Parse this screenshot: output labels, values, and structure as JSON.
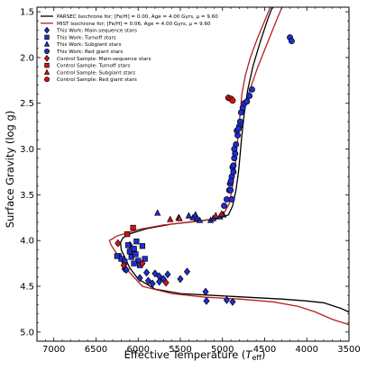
{
  "chart_data": {
    "type": "scatter",
    "xlabel_main": "Effective Temperature (",
    "xlabel_sym": "T",
    "xlabel_sub": "eff",
    "xlabel_close": ")",
    "ylabel": "Surface Gravity (log g)",
    "xlim": [
      7200,
      3500
    ],
    "ylim": [
      5.1,
      1.45
    ],
    "x_ticks": [
      7000,
      6500,
      6000,
      5500,
      5000,
      4500,
      4000,
      3500
    ],
    "x_tick_labels": [
      "7000",
      "6500",
      "6000",
      "5500",
      "5000",
      "4500",
      "4000",
      "3500"
    ],
    "y_ticks": [
      1.5,
      2.0,
      2.5,
      3.0,
      3.5,
      4.0,
      4.5,
      5.0
    ],
    "y_tick_labels": [
      "1.5",
      "2.0",
      "2.5",
      "3.0",
      "3.5",
      "4.0",
      "4.5",
      "5.0"
    ],
    "legend_position": "top-left",
    "legend": [
      {
        "label": "PARSEC Isochrone for; [Fe/H] = 0.00, Age = 4.00 Gyrs, μ = 9.60",
        "kind": "line",
        "color": "#000000"
      },
      {
        "label": "MIST Isochrone for; [Fe/H] = 0.06, Age = 4.00 Gyrs, μ = 9.60",
        "kind": "line",
        "color": "#b22222"
      },
      {
        "label": "This Work: Main-sequence stars",
        "kind": "diamond",
        "color": "#1f2fd6"
      },
      {
        "label": "This Work: Turnoff stars",
        "kind": "square",
        "color": "#1f2fd6"
      },
      {
        "label": "This Work: Subgiant stars",
        "kind": "triangle",
        "color": "#1f2fd6"
      },
      {
        "label": "This Work: Red giant stars",
        "kind": "circle",
        "color": "#1f2fd6"
      },
      {
        "label": "Control Sample: Main-sequence stars",
        "kind": "diamond",
        "color": "#dd1111"
      },
      {
        "label": "Control Sample: Turnoff stars",
        "kind": "square",
        "color": "#dd1111"
      },
      {
        "label": "Control Sample: Subgiant stars",
        "kind": "triangle",
        "color": "#dd1111"
      },
      {
        "label": "Control Sample: Red giant stars",
        "kind": "circle",
        "color": "#dd1111"
      }
    ],
    "series": [
      {
        "name": "PARSEC Isochrone for; [Fe/H] = 0.00, Age = 4.00 Gyrs, μ = 9.60",
        "kind": "line",
        "color": "#000000",
        "points": [
          [
            3500,
            4.78
          ],
          [
            3600,
            4.74
          ],
          [
            3700,
            4.71
          ],
          [
            3800,
            4.68
          ],
          [
            4000,
            4.66
          ],
          [
            4300,
            4.64
          ],
          [
            4700,
            4.62
          ],
          [
            5100,
            4.6
          ],
          [
            5500,
            4.58
          ],
          [
            5800,
            4.53
          ],
          [
            6000,
            4.42
          ],
          [
            6100,
            4.3
          ],
          [
            6150,
            4.2
          ],
          [
            6200,
            4.1
          ],
          [
            6210,
            4.02
          ],
          [
            6180,
            3.97
          ],
          [
            6080,
            3.92
          ],
          [
            5900,
            3.87
          ],
          [
            5600,
            3.82
          ],
          [
            5300,
            3.79
          ],
          [
            5050,
            3.76
          ],
          [
            4930,
            3.72
          ],
          [
            4880,
            3.62
          ],
          [
            4840,
            3.45
          ],
          [
            4810,
            3.25
          ],
          [
            4790,
            3.05
          ],
          [
            4770,
            2.85
          ],
          [
            4740,
            2.6
          ],
          [
            4700,
            2.35
          ],
          [
            4640,
            2.1
          ],
          [
            4560,
            1.85
          ],
          [
            4470,
            1.6
          ],
          [
            4390,
            1.4
          ]
        ]
      },
      {
        "name": "MIST Isochrone for; [Fe/H] = 0.06, Age = 4.00 Gyrs, μ = 9.60",
        "kind": "line",
        "color": "#b22222",
        "points": [
          [
            3500,
            4.92
          ],
          [
            3700,
            4.86
          ],
          [
            3900,
            4.78
          ],
          [
            4100,
            4.72
          ],
          [
            4400,
            4.67
          ],
          [
            4800,
            4.64
          ],
          [
            5200,
            4.62
          ],
          [
            5600,
            4.58
          ],
          [
            5950,
            4.5
          ],
          [
            6150,
            4.3
          ],
          [
            6250,
            4.15
          ],
          [
            6320,
            4.05
          ],
          [
            6340,
            4.0
          ],
          [
            6250,
            3.95
          ],
          [
            6000,
            3.88
          ],
          [
            5700,
            3.83
          ],
          [
            5400,
            3.8
          ],
          [
            5150,
            3.77
          ],
          [
            5000,
            3.73
          ],
          [
            4920,
            3.6
          ],
          [
            4880,
            3.4
          ],
          [
            4850,
            3.2
          ],
          [
            4830,
            3.0
          ],
          [
            4810,
            2.8
          ],
          [
            4790,
            2.6
          ],
          [
            4770,
            2.4
          ],
          [
            4730,
            2.2
          ],
          [
            4670,
            2.0
          ],
          [
            4590,
            1.8
          ],
          [
            4500,
            1.6
          ],
          [
            4420,
            1.42
          ]
        ]
      },
      {
        "name": "MIST Isochrone for; [Fe/H] = 0.06, Age = 4.00 Gyrs, μ = 9.60",
        "kind": "line",
        "color": "#b22222",
        "legend": false,
        "points": [
          [
            4700,
            2.42
          ],
          [
            4580,
            2.1
          ],
          [
            4450,
            1.8
          ],
          [
            4340,
            1.55
          ],
          [
            4280,
            1.42
          ]
        ]
      },
      {
        "name": "This Work: Main-sequence stars",
        "kind": "diamond",
        "color": "#1f2fd6",
        "points": [
          [
            6160,
            4.31
          ],
          [
            6140,
            4.32
          ],
          [
            5980,
            4.41
          ],
          [
            5900,
            4.35
          ],
          [
            5880,
            4.44
          ],
          [
            5830,
            4.47
          ],
          [
            5800,
            4.36
          ],
          [
            5750,
            4.39
          ],
          [
            5700,
            4.42
          ],
          [
            5650,
            4.37
          ],
          [
            5500,
            4.42
          ],
          [
            5420,
            4.34
          ],
          [
            5200,
            4.56
          ],
          [
            5190,
            4.66
          ],
          [
            4950,
            4.65
          ],
          [
            4880,
            4.67
          ],
          [
            6100,
            4.05
          ],
          [
            6050,
            4.1
          ],
          [
            5750,
            4.45
          ],
          [
            5960,
            4.26
          ]
        ]
      },
      {
        "name": "This Work: Turnoff stars",
        "kind": "square",
        "color": "#1f2fd6",
        "points": [
          [
            6230,
            4.17
          ],
          [
            6200,
            4.2
          ],
          [
            6120,
            4.05
          ],
          [
            6100,
            4.12
          ],
          [
            6080,
            4.18
          ],
          [
            6050,
            4.09
          ],
          [
            6030,
            4.15
          ],
          [
            6000,
            4.22
          ],
          [
            6050,
            4.25
          ],
          [
            5980,
            4.27
          ],
          [
            5950,
            4.06
          ],
          [
            6160,
            4.23
          ],
          [
            6020,
            4.01
          ],
          [
            5920,
            4.2
          ],
          [
            6250,
            4.17
          ]
        ]
      },
      {
        "name": "This Work: Subgiant stars",
        "kind": "triangle",
        "color": "#1f2fd6",
        "points": [
          [
            5770,
            3.7
          ],
          [
            5520,
            3.75
          ],
          [
            5400,
            3.73
          ],
          [
            5350,
            3.75
          ],
          [
            5320,
            3.72
          ],
          [
            5300,
            3.76
          ],
          [
            5270,
            3.78
          ],
          [
            5140,
            3.78
          ],
          [
            5110,
            3.76
          ],
          [
            5030,
            3.74
          ],
          [
            4990,
            3.72
          ]
        ]
      },
      {
        "name": "This Work: Red giant stars",
        "kind": "circle",
        "color": "#1f2fd6",
        "points": [
          [
            4980,
            3.62
          ],
          [
            4950,
            3.55
          ],
          [
            4920,
            3.45
          ],
          [
            4910,
            3.38
          ],
          [
            4890,
            3.3
          ],
          [
            4880,
            3.2
          ],
          [
            4860,
            3.1
          ],
          [
            4850,
            3.05
          ],
          [
            4840,
            2.95
          ],
          [
            4820,
            2.85
          ],
          [
            4800,
            2.75
          ],
          [
            4790,
            2.7
          ],
          [
            4780,
            2.6
          ],
          [
            4760,
            2.55
          ],
          [
            4740,
            2.5
          ],
          [
            4710,
            2.48
          ],
          [
            4680,
            2.42
          ],
          [
            4650,
            2.35
          ],
          [
            4900,
            3.35
          ],
          [
            4870,
            3.18
          ],
          [
            4860,
            3.0
          ],
          [
            4830,
            2.8
          ],
          [
            4200,
            1.78
          ],
          [
            4180,
            1.82
          ],
          [
            4810,
            2.78
          ],
          [
            4870,
            3.25
          ],
          [
            4905,
            3.45
          ],
          [
            4890,
            3.55
          ]
        ]
      },
      {
        "name": "Control Sample: Main-sequence stars",
        "kind": "diamond",
        "color": "#dd1111",
        "points": [
          [
            6170,
            4.27
          ],
          [
            5950,
            4.25
          ],
          [
            5670,
            4.46
          ],
          [
            6240,
            4.03
          ]
        ]
      },
      {
        "name": "Control Sample: Turnoff stars",
        "kind": "square",
        "color": "#dd1111",
        "points": [
          [
            6130,
            3.93
          ],
          [
            6060,
            3.86
          ]
        ]
      },
      {
        "name": "Control Sample: Subgiant stars",
        "kind": "triangle",
        "color": "#dd1111",
        "points": [
          [
            5620,
            3.77
          ],
          [
            5510,
            3.76
          ],
          [
            5080,
            3.73
          ],
          [
            5010,
            3.71
          ]
        ]
      },
      {
        "name": "Control Sample: Red giant stars",
        "kind": "circle",
        "color": "#dd1111",
        "points": [
          [
            4930,
            2.44
          ],
          [
            4900,
            2.45
          ],
          [
            4880,
            2.47
          ]
        ]
      }
    ]
  }
}
